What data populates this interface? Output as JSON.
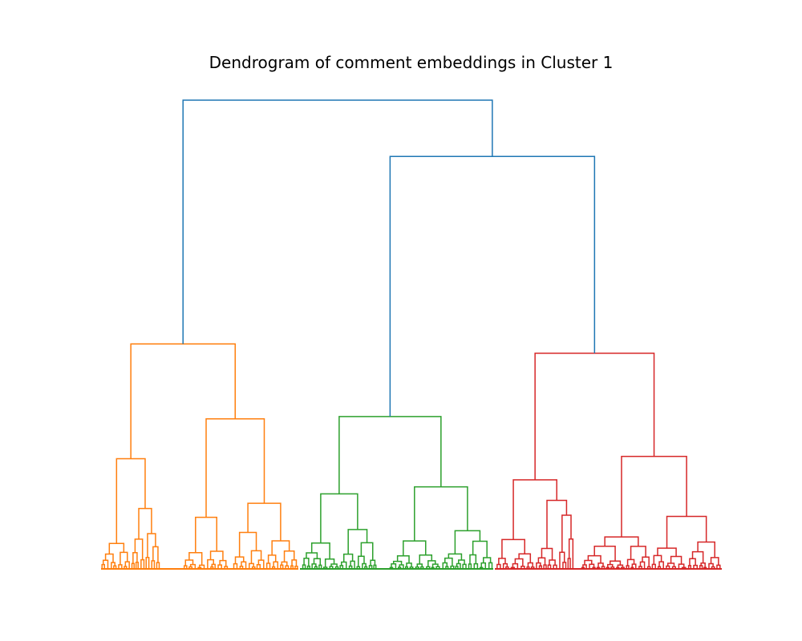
{
  "chart_data": {
    "type": "dendrogram",
    "title": "Dendrogram of comment embeddings in Cluster 1",
    "xlabel": "",
    "ylabel": "",
    "axes_visible": false,
    "grid": false,
    "legend": "none",
    "height_range": [
      0,
      100
    ],
    "cut_threshold_color": "#1f77b4",
    "top_links": [
      {
        "name": "root",
        "height": 100,
        "color": "#1f77b4",
        "children": [
          "orange_cluster",
          "upper_right"
        ]
      },
      {
        "name": "upper_right",
        "height": 88,
        "color": "#1f77b4",
        "children": [
          "green_cluster",
          "red_cluster"
        ]
      }
    ],
    "clusters": [
      {
        "name": "orange_cluster",
        "color": "#ff7f0e",
        "root_height": 48,
        "approx_leaves": 120,
        "subclusters": [
          {
            "height": 23.5,
            "children_heights": [
              7.5,
              16.5
            ]
          },
          {
            "height": 32,
            "children_heights": [
              11,
              14
            ]
          },
          {
            "height": 11,
            "children_heights": [
              4,
              5
            ]
          },
          {
            "height": 14,
            "children_heights": [
              9,
              7
            ]
          }
        ]
      },
      {
        "name": "green_cluster",
        "color": "#2ca02c",
        "root_height": 32.5,
        "approx_leaves": 105,
        "subclusters": [
          {
            "height": 16,
            "children_heights": [
              6,
              9.5
            ]
          },
          {
            "height": 17.5,
            "children_heights": [
              8.5,
              9.5
            ]
          }
        ]
      },
      {
        "name": "red_cluster",
        "color": "#d62728",
        "root_height": 46,
        "approx_leaves": 120,
        "subclusters": [
          {
            "height": 19,
            "children_heights": [
              8.5,
              15.5
            ]
          },
          {
            "height": 24,
            "children_heights": [
              9.5,
              14
            ]
          }
        ]
      }
    ],
    "colors": {
      "orange": "#ff7f0e",
      "green": "#2ca02c",
      "red": "#d62728",
      "link": "#1f77b4"
    }
  }
}
